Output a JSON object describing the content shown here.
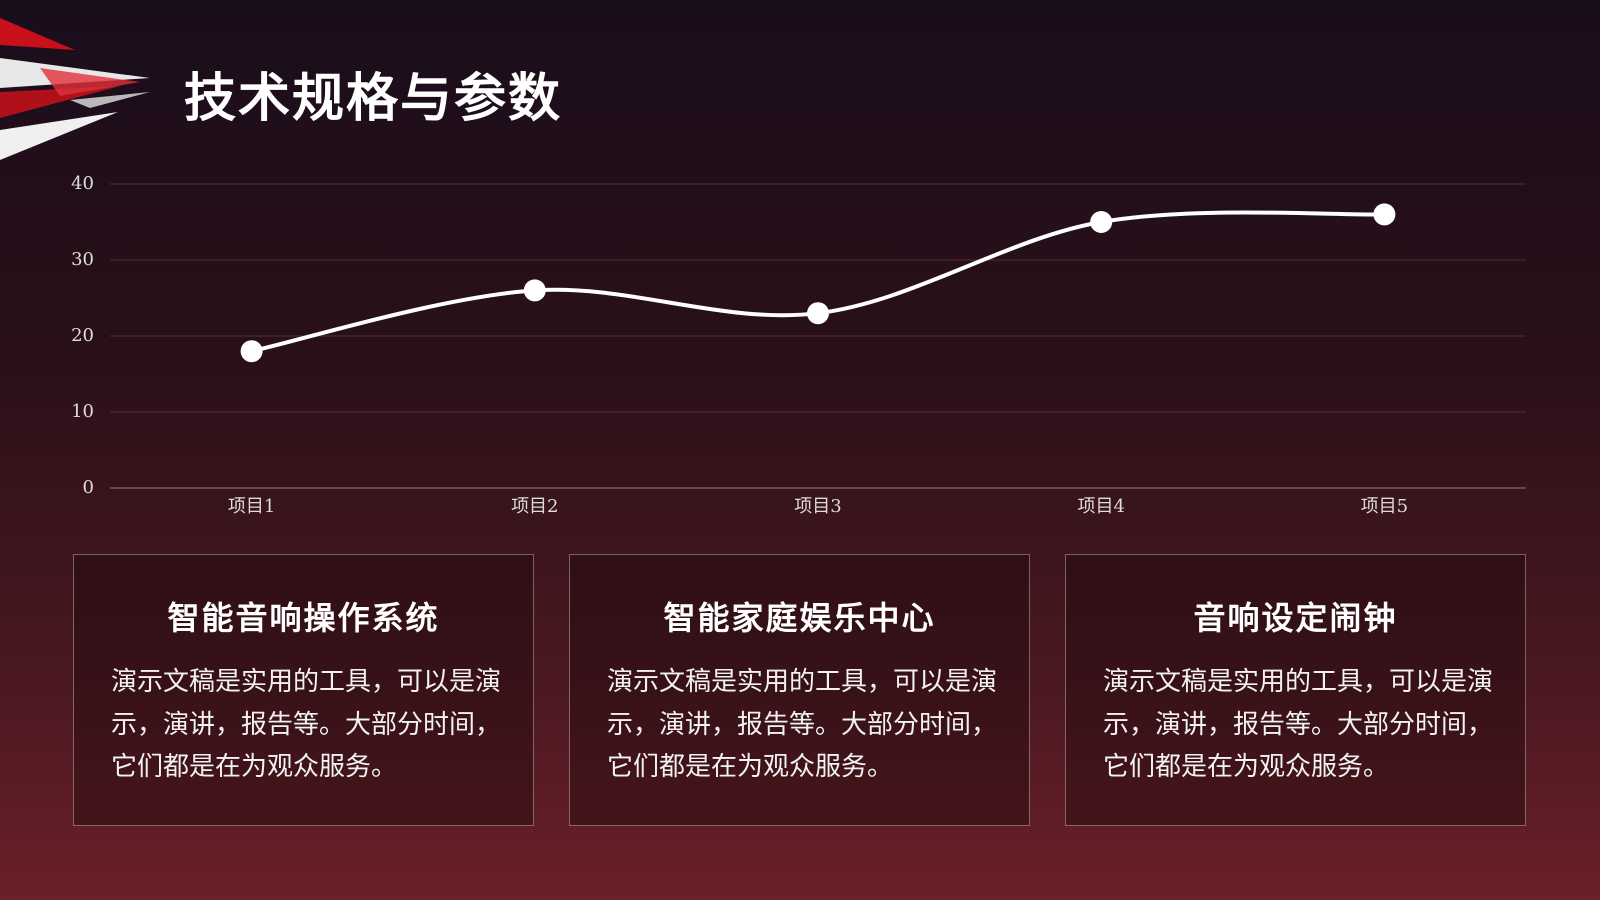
{
  "title": "技术规格与参数",
  "chart_data": {
    "type": "line",
    "categories": [
      "项目1",
      "项目2",
      "项目3",
      "项目4",
      "项目5"
    ],
    "series": [
      {
        "color": "#ffffff",
        "values": [
          18,
          26,
          23,
          35,
          36
        ]
      }
    ],
    "ylim": [
      0,
      40
    ],
    "yticks": [
      0,
      10,
      20,
      30,
      40
    ],
    "grid": true,
    "smooth": true
  },
  "cards": [
    {
      "title": "智能音响操作系统",
      "text": "演示文稿是实用的工具，可以是演示，演讲，报告等。大部分时间，它们都是在为观众服务。"
    },
    {
      "title": "智能家庭娱乐中心",
      "text": "演示文稿是实用的工具，可以是演示，演讲，报告等。大部分时间，它们都是在为观众服务。"
    },
    {
      "title": "音响设定闹钟",
      "text": "演示文稿是实用的工具，可以是演示，演讲，报告等。大部分时间，它们都是在为观众服务。"
    }
  ]
}
